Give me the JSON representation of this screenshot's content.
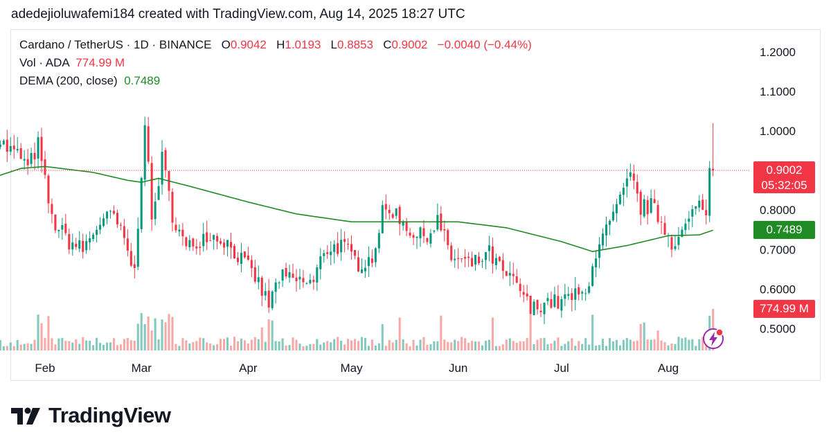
{
  "header": {
    "text": "adedejioluwafemi184 created with TradingView.com, Aug 14, 2025 18:27 UTC"
  },
  "legend": {
    "symbol": "Cardano / TetherUS · 1D · BINANCE",
    "o_label": "O",
    "o_value": "0.9042",
    "h_label": "H",
    "h_value": "1.0193",
    "l_label": "L",
    "l_value": "0.8853",
    "c_label": "C",
    "c_value": "0.9002",
    "change": "−0.0040 (−0.44%)",
    "vol_label": "Vol · ADA",
    "vol_value": "774.99 M",
    "dema_label": "DEMA (200, close)",
    "dema_value": "0.7489"
  },
  "tags": {
    "price": "0.9002",
    "countdown": "05:32:05",
    "dema": "0.7489",
    "volume": "774.99 M"
  },
  "brand": {
    "name": "TradingView"
  },
  "colors": {
    "up": "#089981",
    "down": "#f23645",
    "dema": "#1f8b24",
    "up_vol": "#84c9bd",
    "down_vol": "#f7a9a7"
  },
  "icons": {
    "brand": "tradingview-logo-icon",
    "flash": "lightning-icon"
  },
  "chart_data": {
    "type": "candlestick",
    "title": "Cardano / TetherUS · 1D · BINANCE",
    "y_ticks": [
      "1.2000",
      "1.1000",
      "1.0000",
      "0.8000",
      "0.7000",
      "0.6000",
      "0.5000"
    ],
    "x_ticks": [
      "Feb",
      "Mar",
      "Apr",
      "May",
      "Jun",
      "Jul",
      "Aug"
    ],
    "ylim": [
      0.44,
      1.25
    ],
    "grid": false,
    "last_price": 0.9002,
    "close_path": [
      {
        "date": "2025-01-18",
        "close": 0.985
      },
      {
        "date": "2025-01-21",
        "close": 0.955
      },
      {
        "date": "2025-01-25",
        "close": 0.935
      },
      {
        "date": "2025-01-27",
        "close": 0.905
      },
      {
        "date": "2025-01-30",
        "close": 0.965
      },
      {
        "date": "2025-02-03",
        "close": 0.775
      },
      {
        "date": "2025-02-08",
        "close": 0.72
      },
      {
        "date": "2025-02-12",
        "close": 0.7
      },
      {
        "date": "2025-02-17",
        "close": 0.77
      },
      {
        "date": "2025-02-21",
        "close": 0.785
      },
      {
        "date": "2025-02-24",
        "close": 0.72
      },
      {
        "date": "2025-02-27",
        "close": 0.64
      },
      {
        "date": "2025-03-02",
        "close": 1.03
      },
      {
        "date": "2025-03-04",
        "close": 0.77
      },
      {
        "date": "2025-03-07",
        "close": 0.93
      },
      {
        "date": "2025-03-10",
        "close": 0.79
      },
      {
        "date": "2025-03-14",
        "close": 0.7
      },
      {
        "date": "2025-03-20",
        "close": 0.74
      },
      {
        "date": "2025-03-25",
        "close": 0.725
      },
      {
        "date": "2025-03-29",
        "close": 0.685
      },
      {
        "date": "2025-04-03",
        "close": 0.63
      },
      {
        "date": "2025-04-07",
        "close": 0.56
      },
      {
        "date": "2025-04-10",
        "close": 0.63
      },
      {
        "date": "2025-04-15",
        "close": 0.62
      },
      {
        "date": "2025-04-20",
        "close": 0.615
      },
      {
        "date": "2025-04-23",
        "close": 0.7
      },
      {
        "date": "2025-04-28",
        "close": 0.71
      },
      {
        "date": "2025-05-03",
        "close": 0.665
      },
      {
        "date": "2025-05-07",
        "close": 0.68
      },
      {
        "date": "2025-05-10",
        "close": 0.79
      },
      {
        "date": "2025-05-13",
        "close": 0.8
      },
      {
        "date": "2025-05-17",
        "close": 0.76
      },
      {
        "date": "2025-05-20",
        "close": 0.73
      },
      {
        "date": "2025-05-24",
        "close": 0.745
      },
      {
        "date": "2025-05-26",
        "close": 0.775
      },
      {
        "date": "2025-05-30",
        "close": 0.68
      },
      {
        "date": "2025-06-05",
        "close": 0.66
      },
      {
        "date": "2025-06-10",
        "close": 0.69
      },
      {
        "date": "2025-06-14",
        "close": 0.64
      },
      {
        "date": "2025-06-19",
        "close": 0.6
      },
      {
        "date": "2025-06-22",
        "close": 0.545
      },
      {
        "date": "2025-06-26",
        "close": 0.57
      },
      {
        "date": "2025-06-30",
        "close": 0.565
      },
      {
        "date": "2025-07-04",
        "close": 0.58
      },
      {
        "date": "2025-07-08",
        "close": 0.585
      },
      {
        "date": "2025-07-10",
        "close": 0.67
      },
      {
        "date": "2025-07-14",
        "close": 0.745
      },
      {
        "date": "2025-07-18",
        "close": 0.82
      },
      {
        "date": "2025-07-21",
        "close": 0.885
      },
      {
        "date": "2025-07-24",
        "close": 0.805
      },
      {
        "date": "2025-07-27",
        "close": 0.81
      },
      {
        "date": "2025-07-30",
        "close": 0.77
      },
      {
        "date": "2025-08-02",
        "close": 0.72
      },
      {
        "date": "2025-08-05",
        "close": 0.74
      },
      {
        "date": "2025-08-08",
        "close": 0.79
      },
      {
        "date": "2025-08-11",
        "close": 0.82
      },
      {
        "date": "2025-08-12",
        "close": 0.78
      },
      {
        "date": "2025-08-13",
        "close": 0.904
      },
      {
        "date": "2025-08-14",
        "close": 0.9002
      }
    ],
    "dema_200": [
      {
        "date": "2025-01-18",
        "value": 0.885
      },
      {
        "date": "2025-01-25",
        "value": 0.905
      },
      {
        "date": "2025-02-01",
        "value": 0.91
      },
      {
        "date": "2025-02-15",
        "value": 0.895
      },
      {
        "date": "2025-02-25",
        "value": 0.875
      },
      {
        "date": "2025-03-01",
        "value": 0.87
      },
      {
        "date": "2025-03-06",
        "value": 0.88
      },
      {
        "date": "2025-03-15",
        "value": 0.86
      },
      {
        "date": "2025-04-01",
        "value": 0.82
      },
      {
        "date": "2025-04-15",
        "value": 0.79
      },
      {
        "date": "2025-05-01",
        "value": 0.77
      },
      {
        "date": "2025-05-15",
        "value": 0.77
      },
      {
        "date": "2025-06-01",
        "value": 0.77
      },
      {
        "date": "2025-06-15",
        "value": 0.755
      },
      {
        "date": "2025-07-01",
        "value": 0.72
      },
      {
        "date": "2025-07-10",
        "value": 0.695
      },
      {
        "date": "2025-07-20",
        "value": 0.71
      },
      {
        "date": "2025-08-01",
        "value": 0.735
      },
      {
        "date": "2025-08-10",
        "value": 0.737
      },
      {
        "date": "2025-08-14",
        "value": 0.7489
      }
    ],
    "volume_series_name": "Vol · ADA",
    "last_volume": "774.99 M"
  }
}
